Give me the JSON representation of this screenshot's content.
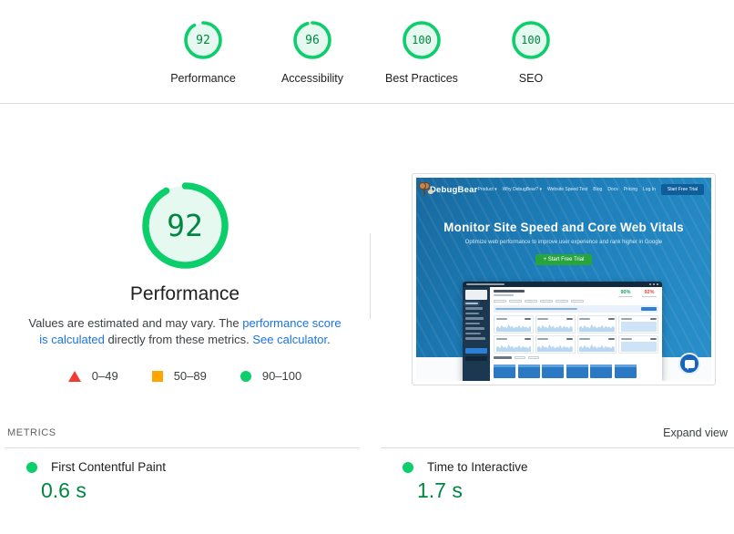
{
  "colors": {
    "score_green": "#0cce6b",
    "score_green_text": "#018642",
    "score_orange": "#ffa400",
    "score_red": "#f23b32",
    "link_blue": "#1a73e8",
    "divider": "#dadce0",
    "site_blue": "#1e7fba"
  },
  "header_scores": {
    "items": [
      {
        "label": "Performance",
        "score": 92
      },
      {
        "label": "Accessibility",
        "score": 96
      },
      {
        "label": "Best Practices",
        "score": 100
      },
      {
        "label": "SEO",
        "score": 100
      }
    ]
  },
  "summary": {
    "score": 92,
    "title": "Performance",
    "desc_pre": "Values are estimated and may vary. The ",
    "desc_link1": "performance score is calculated",
    "desc_mid": " directly from these metrics. ",
    "desc_link2": "See calculator",
    "desc_end": ".",
    "legend": [
      {
        "range": "0–49"
      },
      {
        "range": "50–89"
      },
      {
        "range": "90–100"
      }
    ]
  },
  "screenshot": {
    "site": {
      "brand": "DebugBear",
      "nav": [
        "Product ▾",
        "Why DebugBear? ▾",
        "Website Speed Test",
        "Blog",
        "Docs",
        "Pricing",
        "Log In"
      ],
      "nav_cta": "Start Free Trial",
      "hero_title": "Monitor Site Speed and Core Web Vitals",
      "hero_subtitle": "Optimize web performance to improve user experience and rank higher in Google",
      "hero_cta": "+ Start Free Trial",
      "dashboard_badges": [
        "90%",
        "92%"
      ]
    }
  },
  "metrics": {
    "section_label": "METRICS",
    "expand_label": "Expand view",
    "items": [
      {
        "name": "First Contentful Paint",
        "value": "0.6 s"
      },
      {
        "name": "Time to Interactive",
        "value": "1.7 s"
      }
    ]
  }
}
